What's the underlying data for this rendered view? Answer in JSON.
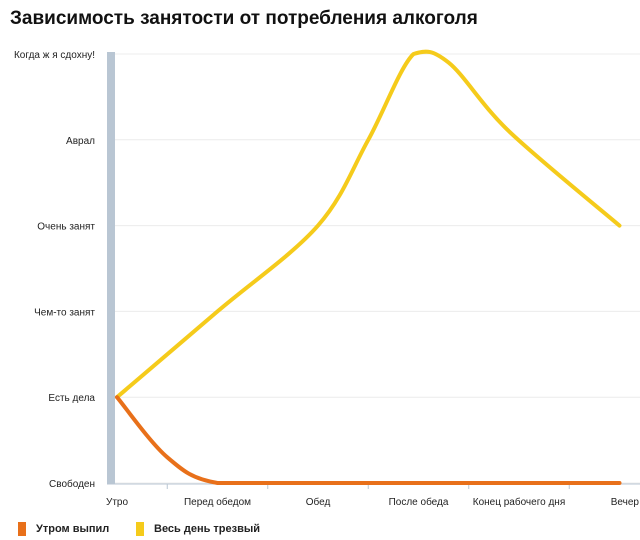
{
  "chart_data": {
    "type": "line",
    "title": "Зависимость занятости от потребления алкоголя",
    "categories": [
      "Утро",
      "Перед обедом",
      "Обед",
      "После обеда",
      "Конец рабочего дня",
      "Вечер"
    ],
    "y_levels": [
      "Свободен",
      "Есть дела",
      "Чем-то занят",
      "Очень занят",
      "Аврал",
      "Когда ж я сдохну!"
    ],
    "ylim": [
      0,
      5
    ],
    "grid": true,
    "legend_position": "bottom-left",
    "series": [
      {
        "name": "Утром выпил",
        "color": "#e8701a",
        "x": [
          0,
          0.5,
          1,
          2,
          3,
          4,
          5
        ],
        "y": [
          1,
          0.3,
          0,
          0,
          0,
          0,
          0
        ]
      },
      {
        "name": "Весь день трезвый",
        "color": "#f5cb1b",
        "x": [
          0,
          1,
          2,
          2.5,
          2.95,
          3.3,
          3.9,
          5
        ],
        "y": [
          1,
          2,
          3,
          4,
          5,
          4.9,
          4.1,
          3
        ]
      }
    ]
  }
}
